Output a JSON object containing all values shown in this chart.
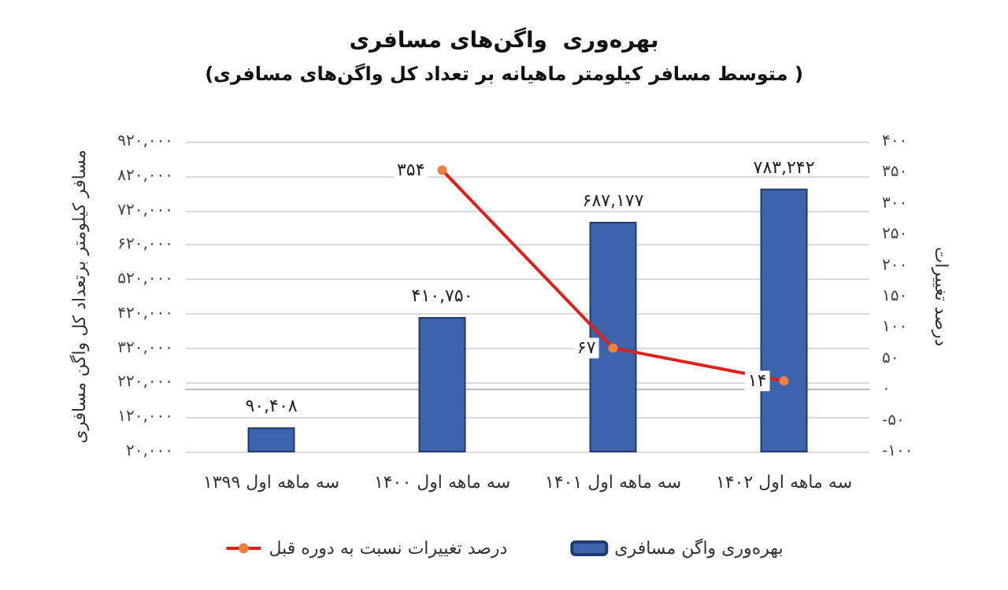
{
  "chart_data": {
    "type": "bar",
    "title": "بهره‌وری  واگن‌های مسافری",
    "subtitle": "(متوسط مسافر کیلومتر ماهیانه بر تعداد کل واگن‌های مسافری )",
    "ylabel": "مسافر کیلومتر برتعداد کل واگن مسافری",
    "y2label": "درصد تغییرات",
    "categories": [
      "سه ماهه اول ۱۳۹۹",
      "سه ماهه اول ۱۴۰۰",
      "سه ماهه اول ۱۴۰۱",
      "سه ماهه اول ۱۴۰۲"
    ],
    "series": [
      {
        "name": "بهره‌وری واگن مسافری",
        "color": "#3d63ad",
        "values": [
          90408,
          410750,
          687177,
          783242
        ],
        "value_labels": [
          "۹۰,۴۰۸",
          "۴۱۰,۷۵۰",
          "۶۸۷,۱۷۷",
          "۷۸۳,۲۴۲"
        ]
      },
      {
        "name": "درصد تغییرات نسبت به دوره قبل",
        "type": "line",
        "axis": "y2",
        "color": "#e0201a",
        "marker": "circle",
        "values": [
          null,
          354,
          67,
          14
        ],
        "value_labels": [
          null,
          "۳۵۴",
          "۶۷",
          "۱۴"
        ]
      }
    ],
    "ylim": [
      20000,
      920000
    ],
    "yticks": [
      {
        "value": 20000,
        "label": "۲۰,۰۰۰"
      },
      {
        "value": 120000,
        "label": "۱۲۰,۰۰۰"
      },
      {
        "value": 220000,
        "label": "۲۲۰,۰۰۰"
      },
      {
        "value": 320000,
        "label": "۳۲۰,۰۰۰"
      },
      {
        "value": 420000,
        "label": "۴۲۰,۰۰۰"
      },
      {
        "value": 520000,
        "label": "۵۲۰,۰۰۰"
      },
      {
        "value": 620000,
        "label": "۶۲۰,۰۰۰"
      },
      {
        "value": 720000,
        "label": "۷۲۰,۰۰۰"
      },
      {
        "value": 820000,
        "label": "۸۲۰,۰۰۰"
      },
      {
        "value": 920000,
        "label": "۹۲۰,۰۰۰"
      }
    ],
    "y2lim": [
      -100,
      400
    ],
    "y2ticks": [
      {
        "value": -100,
        "label": "-۱۰۰"
      },
      {
        "value": -50,
        "label": "-۵۰"
      },
      {
        "value": 0,
        "label": "۰"
      },
      {
        "value": 50,
        "label": "۵۰"
      },
      {
        "value": 100,
        "label": "۱۰۰"
      },
      {
        "value": 150,
        "label": "۱۵۰"
      },
      {
        "value": 200,
        "label": "۲۰۰"
      },
      {
        "value": 250,
        "label": "۲۵۰"
      },
      {
        "value": 300,
        "label": "۳۰۰"
      },
      {
        "value": 350,
        "label": "۳۵۰"
      },
      {
        "value": 400,
        "label": "۴۰۰"
      }
    ],
    "grid": "y",
    "legend": "bottom"
  }
}
